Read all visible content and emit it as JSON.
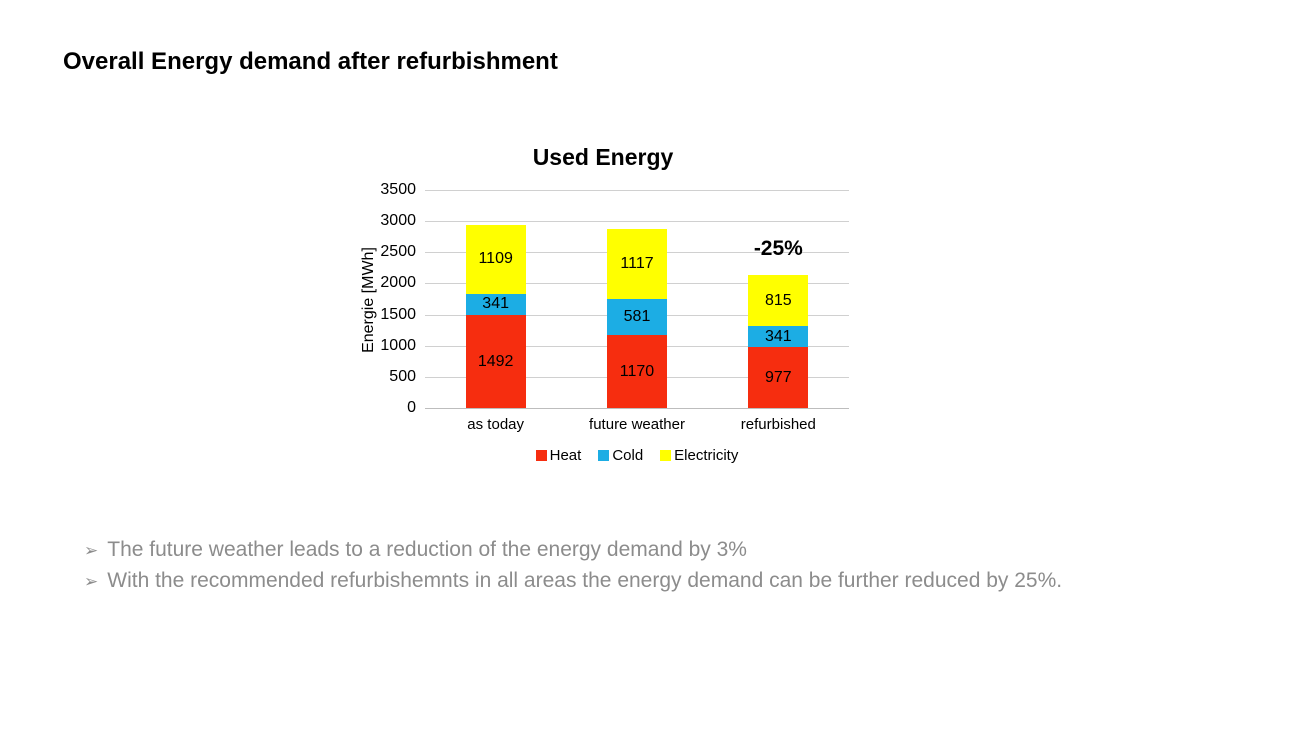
{
  "slide": {
    "title": "Overall Energy demand after refurbishment",
    "bullet_marker": "➢",
    "bullet_text_color": "#8C8C8C",
    "bullets": [
      "The future weather leads to a reduction of the energy demand by 3%",
      "With the recommended refurbishemnts in all areas the energy demand can be further reduced by 25%."
    ]
  },
  "chart_data": {
    "type": "bar",
    "stacked": true,
    "title": "Used Energy",
    "xlabel": "",
    "ylabel": "Energie [MWh]",
    "categories": [
      "as today",
      "future weather",
      "refurbished"
    ],
    "series": [
      {
        "name": "Heat",
        "color": "#F62D0F",
        "values": [
          1492,
          1170,
          977
        ]
      },
      {
        "name": "Cold",
        "color": "#1CADE4",
        "values": [
          341,
          581,
          341
        ]
      },
      {
        "name": "Electricity",
        "color": "#FFFF00",
        "values": [
          1109,
          1117,
          815
        ]
      }
    ],
    "totals": [
      2942,
      2868,
      2133
    ],
    "ylim": [
      0,
      3500
    ],
    "ytick_step": 500,
    "grid": true,
    "grid_color": "#D0D0D0",
    "axis_line_color": "#BDBDBD",
    "data_labels": true,
    "legend_position": "bottom",
    "annotations": [
      {
        "text": "-25%",
        "category": "refurbished",
        "category_index": 2
      }
    ]
  }
}
